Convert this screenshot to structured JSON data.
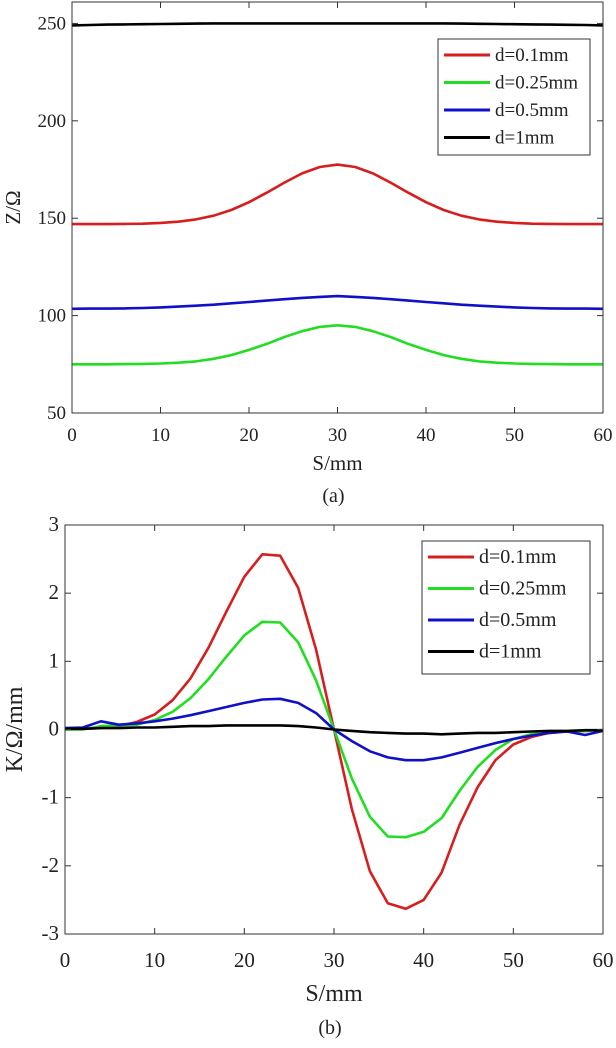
{
  "colors": {
    "d=0.1mm": "#d61e1e",
    "d=0.25mm": "#22dd22",
    "d=0.5mm": "#1010c8",
    "d=1mm": "#000000"
  },
  "chart_data": [
    {
      "type": "line",
      "caption": "(a)",
      "xlabel": "S/mm",
      "ylabel": "Z/Ω",
      "xlim": [
        0,
        60
      ],
      "ylim": [
        50,
        261
      ],
      "xticks": [
        0,
        10,
        20,
        30,
        40,
        50,
        60
      ],
      "yticks": [
        50,
        100,
        150,
        200,
        250
      ],
      "grid": false,
      "legend_position": "top-right",
      "x": [
        0,
        2,
        4,
        6,
        8,
        10,
        12,
        14,
        16,
        18,
        20,
        22,
        24,
        26,
        28,
        30,
        32,
        34,
        36,
        38,
        40,
        42,
        44,
        46,
        48,
        50,
        52,
        54,
        56,
        58,
        60
      ],
      "series": [
        {
          "name": "d=0.1mm",
          "values": [
            147.0,
            147.0,
            147.0,
            147.1,
            147.2,
            147.6,
            148.2,
            149.4,
            151.3,
            154.2,
            158.2,
            163.1,
            168.3,
            173.0,
            176.3,
            177.5,
            176.3,
            173.0,
            168.3,
            163.1,
            158.2,
            154.2,
            151.3,
            149.4,
            148.2,
            147.6,
            147.2,
            147.1,
            147.0,
            147.0,
            147.0
          ]
        },
        {
          "name": "d=0.25mm",
          "values": [
            75.0,
            75.0,
            75.0,
            75.1,
            75.2,
            75.4,
            75.8,
            76.5,
            77.8,
            79.7,
            82.4,
            85.5,
            89.0,
            92.0,
            94.2,
            95.0,
            94.2,
            92.0,
            89.0,
            85.5,
            82.4,
            79.7,
            77.8,
            76.5,
            75.8,
            75.4,
            75.2,
            75.1,
            75.0,
            75.0,
            75.0
          ]
        },
        {
          "name": "d=0.5mm",
          "values": [
            103.5,
            103.6,
            103.6,
            103.7,
            103.9,
            104.2,
            104.6,
            105.1,
            105.6,
            106.3,
            107.0,
            107.7,
            108.4,
            109.1,
            109.6,
            110.0,
            109.6,
            109.1,
            108.4,
            107.7,
            107.0,
            106.3,
            105.6,
            105.1,
            104.6,
            104.2,
            103.9,
            103.7,
            103.6,
            103.6,
            103.5
          ]
        },
        {
          "name": "d=1mm",
          "values": [
            249.0,
            249.2,
            249.4,
            249.5,
            249.6,
            249.7,
            249.8,
            249.9,
            250.0,
            250.0,
            250.0,
            250.0,
            250.0,
            250.0,
            250.0,
            250.0,
            250.0,
            250.0,
            250.0,
            250.0,
            250.0,
            250.0,
            249.9,
            249.8,
            249.7,
            249.6,
            249.5,
            249.4,
            249.3,
            249.2,
            249.0
          ]
        }
      ]
    },
    {
      "type": "line",
      "caption": "(b)",
      "xlabel": "S/mm",
      "ylabel": "K/Ω/mm",
      "xlim": [
        0,
        60
      ],
      "ylim": [
        -3,
        3
      ],
      "xticks": [
        0,
        10,
        20,
        30,
        40,
        50,
        60
      ],
      "yticks": [
        -3,
        -2,
        -1,
        0,
        1,
        2,
        3
      ],
      "grid": false,
      "legend_position": "top-right",
      "x": [
        0,
        2,
        4,
        6,
        8,
        10,
        12,
        14,
        16,
        18,
        20,
        22,
        24,
        26,
        28,
        30,
        32,
        34,
        36,
        38,
        40,
        42,
        44,
        46,
        48,
        50,
        52,
        54,
        56,
        58,
        60
      ],
      "series": [
        {
          "name": "d=0.1mm",
          "values": [
            0.0,
            0.01,
            0.02,
            0.05,
            0.11,
            0.22,
            0.43,
            0.75,
            1.2,
            1.73,
            2.24,
            2.57,
            2.55,
            2.08,
            1.17,
            0.0,
            -1.17,
            -2.08,
            -2.55,
            -2.63,
            -2.5,
            -2.1,
            -1.4,
            -0.85,
            -0.45,
            -0.22,
            -0.11,
            -0.05,
            -0.03,
            -0.02,
            -0.01
          ]
        },
        {
          "name": "d=0.25mm",
          "values": [
            0.0,
            0.0,
            0.05,
            0.06,
            0.07,
            0.14,
            0.26,
            0.46,
            0.74,
            1.07,
            1.38,
            1.58,
            1.57,
            1.28,
            0.72,
            0.0,
            -0.72,
            -1.28,
            -1.57,
            -1.58,
            -1.5,
            -1.3,
            -0.9,
            -0.55,
            -0.3,
            -0.14,
            -0.07,
            -0.04,
            -0.03,
            -0.02,
            -0.01
          ]
        },
        {
          "name": "d=0.5mm",
          "values": [
            0.02,
            0.03,
            0.12,
            0.07,
            0.09,
            0.12,
            0.16,
            0.21,
            0.27,
            0.33,
            0.39,
            0.44,
            0.45,
            0.39,
            0.24,
            0.0,
            -0.17,
            -0.32,
            -0.41,
            -0.45,
            -0.45,
            -0.41,
            -0.34,
            -0.27,
            -0.2,
            -0.14,
            -0.09,
            -0.05,
            -0.03,
            -0.08,
            -0.02
          ]
        },
        {
          "name": "d=1mm",
          "values": [
            0.01,
            0.01,
            0.02,
            0.02,
            0.03,
            0.03,
            0.04,
            0.05,
            0.05,
            0.06,
            0.06,
            0.06,
            0.06,
            0.05,
            0.03,
            0.0,
            -0.02,
            -0.04,
            -0.05,
            -0.06,
            -0.06,
            -0.07,
            -0.06,
            -0.05,
            -0.05,
            -0.04,
            -0.03,
            -0.02,
            -0.02,
            -0.01,
            -0.01
          ]
        }
      ]
    }
  ]
}
